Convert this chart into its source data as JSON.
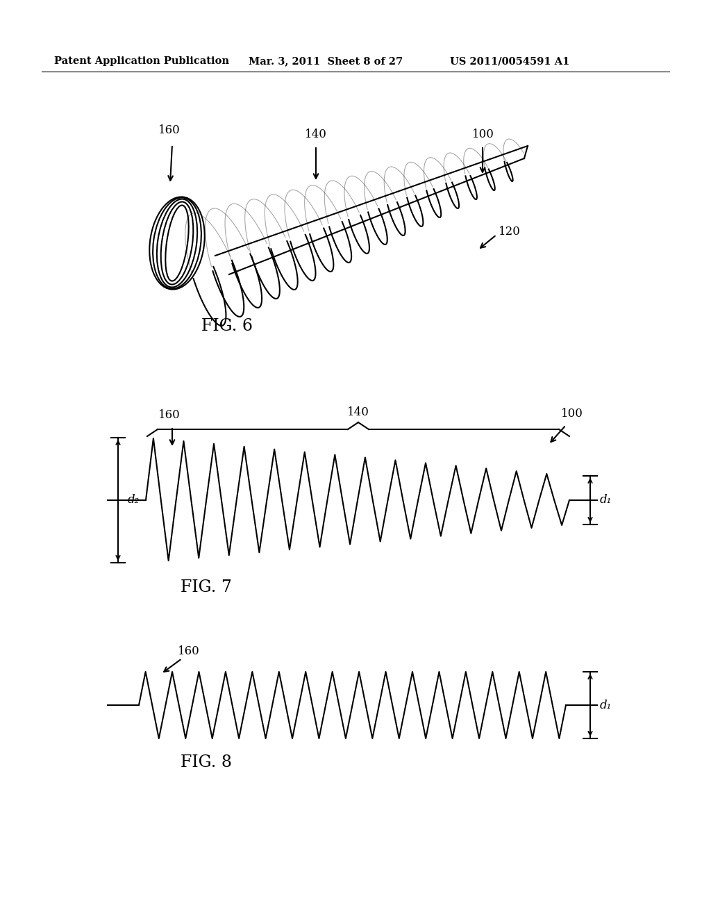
{
  "bg_color": "#ffffff",
  "header_text": "Patent Application Publication",
  "header_date": "Mar. 3, 2011  Sheet 8 of 27",
  "header_patent": "US 2011/0054591 A1",
  "fig6_label": "FIG. 6",
  "fig7_label": "FIG. 7",
  "fig8_label": "FIG. 8",
  "label_100": "100",
  "label_120": "120",
  "label_140": "140",
  "label_160": "160",
  "label_d1": "d₁",
  "label_d2": "d₂"
}
